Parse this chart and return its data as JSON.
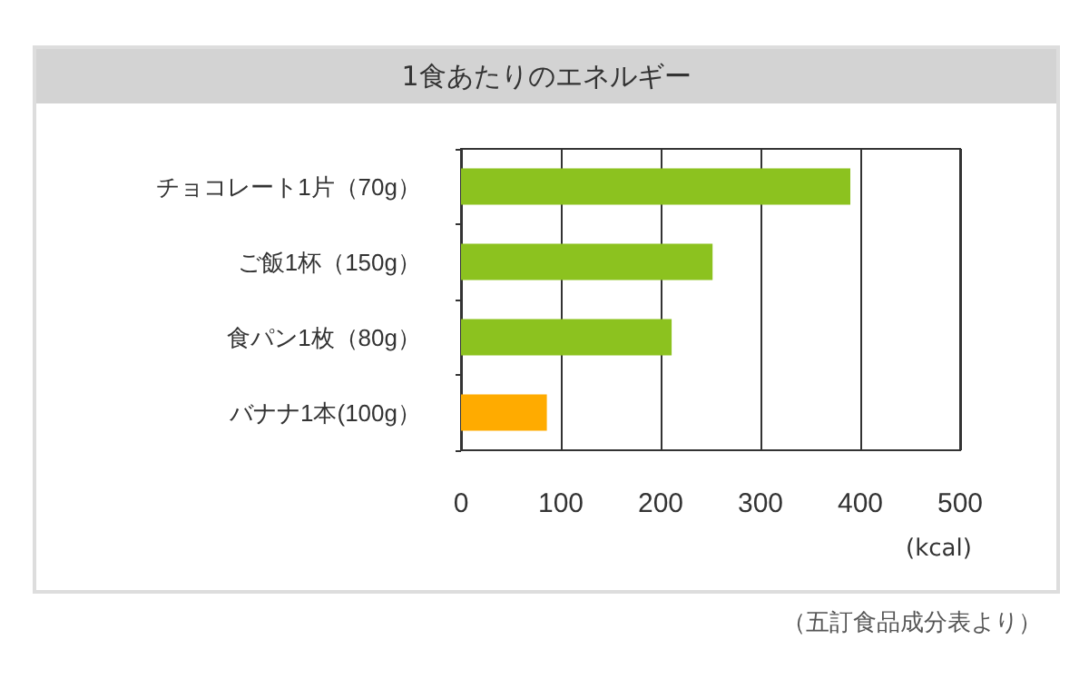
{
  "chart_data": {
    "type": "bar",
    "orientation": "horizontal",
    "title": "1食あたりのエネルギー",
    "categories": [
      "チョコレート1片（70g）",
      "ご飯1杯（150g）",
      "食パン1枚（80g）",
      "バナナ1本(100g）"
    ],
    "values": [
      390,
      252,
      211,
      86
    ],
    "colors": [
      "#8cc21f",
      "#8cc21f",
      "#8cc21f",
      "#ffab00"
    ],
    "xlabel": "(kcal)",
    "xlim": [
      0,
      500
    ],
    "xticks": [
      0,
      100,
      200,
      300,
      400,
      500
    ],
    "grid": "x",
    "annotations": [
      "（五訂食品成分表より）"
    ]
  }
}
